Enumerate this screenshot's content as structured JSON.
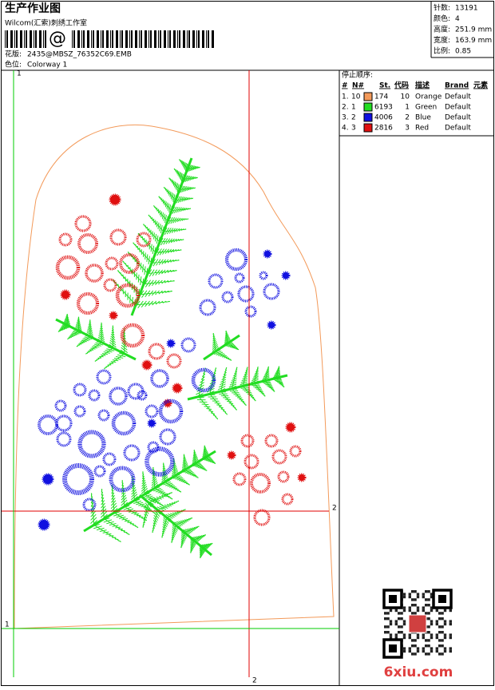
{
  "header": {
    "title": "生产作业图",
    "studio": "Wilcom(汇索)刺绣工作室",
    "barcode_text": "@",
    "design_label": "花版:",
    "design": "2435@MBSZ_76352C69.EMB",
    "colorway_label": "色位:",
    "colorway": "Colorway 1"
  },
  "info": [
    {
      "label": "针数:",
      "value": "13191"
    },
    {
      "label": "颜色:",
      "value": "4"
    },
    {
      "label": "高度:",
      "value": "251.9 mm"
    },
    {
      "label": "宽度:",
      "value": "163.9 mm"
    },
    {
      "label": "比例:",
      "value": "0.85"
    }
  ],
  "stop_sequence": {
    "title": "停止顺序:",
    "columns": [
      "#",
      "N#",
      "St.",
      "代码",
      "描述",
      "Brand",
      "元素"
    ],
    "rows": [
      {
        "index": "1.",
        "n": "10",
        "color": "#f39a5a",
        "stitches": "174",
        "code": "10",
        "description": "Orange",
        "brand": "Default"
      },
      {
        "index": "2.",
        "n": "1",
        "color": "#22dd22",
        "stitches": "6193",
        "code": "1",
        "description": "Green",
        "brand": "Default"
      },
      {
        "index": "3.",
        "n": "2",
        "color": "#1010e0",
        "stitches": "4006",
        "code": "2",
        "description": "Blue",
        "brand": "Default"
      },
      {
        "index": "4.",
        "n": "3",
        "color": "#e01010",
        "stitches": "2816",
        "code": "3",
        "description": "Red",
        "brand": "Default"
      }
    ]
  },
  "guides": {
    "red_label": "2",
    "green_label": "1"
  },
  "watermark": "6xiu.com"
}
